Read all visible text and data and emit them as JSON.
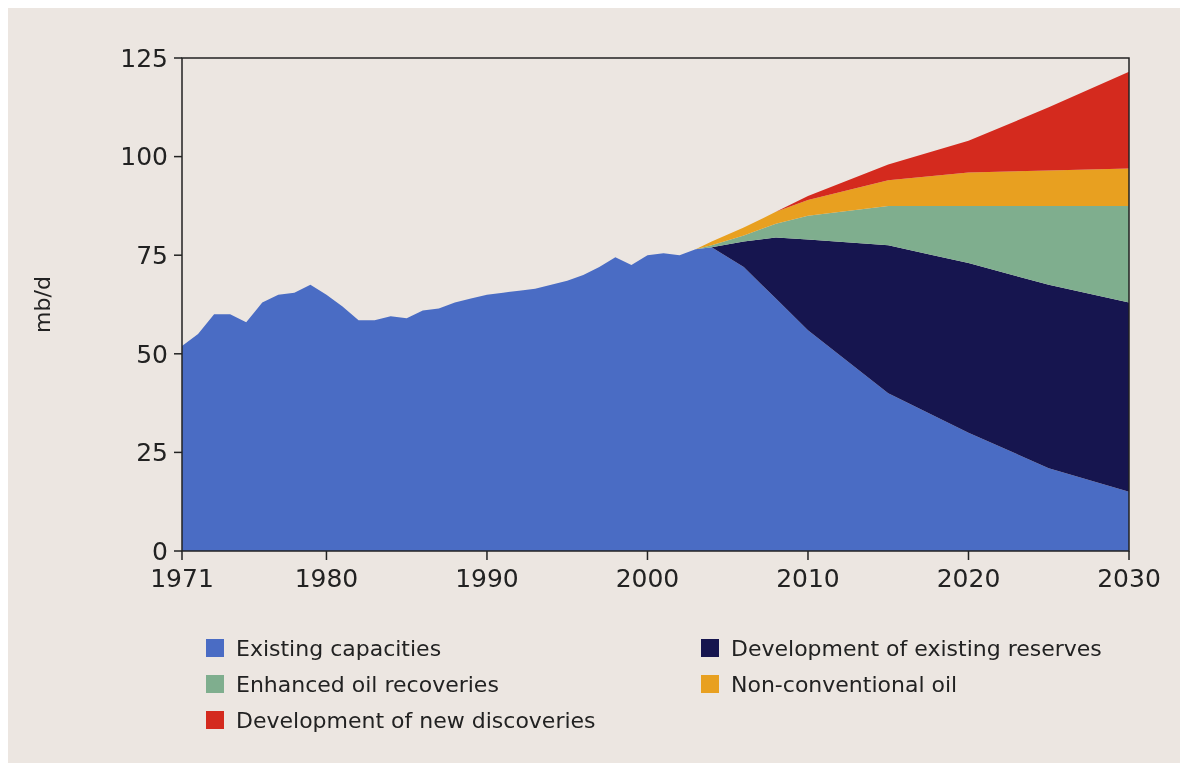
{
  "chart_data": {
    "type": "area",
    "stacked": true,
    "ylabel": "mb/d",
    "x": [
      1971,
      1972,
      1973,
      1974,
      1975,
      1976,
      1977,
      1978,
      1979,
      1980,
      1981,
      1982,
      1983,
      1984,
      1985,
      1986,
      1987,
      1988,
      1989,
      1990,
      1991,
      1992,
      1993,
      1994,
      1995,
      1996,
      1997,
      1998,
      1999,
      2000,
      2001,
      2002,
      2003,
      2004,
      2006,
      2008,
      2010,
      2015,
      2020,
      2025,
      2030
    ],
    "series": [
      {
        "name": "Existing capacities",
        "color": "#4a6cc4",
        "values": [
          52,
          55,
          60,
          60,
          58,
          63,
          65,
          65.5,
          67.5,
          65,
          62,
          58.5,
          58.5,
          59.5,
          59,
          61,
          61.5,
          63,
          64,
          65,
          65.5,
          66,
          66.5,
          67.5,
          68.5,
          70,
          72,
          74.5,
          72.5,
          75,
          75.5,
          75,
          76.5,
          77,
          72,
          64,
          56,
          40,
          30,
          21,
          15
        ]
      },
      {
        "name": "Development of existing reserves",
        "color": "#16154f",
        "values": [
          0,
          0,
          0,
          0,
          0,
          0,
          0,
          0,
          0,
          0,
          0,
          0,
          0,
          0,
          0,
          0,
          0,
          0,
          0,
          0,
          0,
          0,
          0,
          0,
          0,
          0,
          0,
          0,
          0,
          0,
          0,
          0,
          0,
          0,
          6.5,
          15.5,
          23,
          37.5,
          43,
          46.5,
          48
        ]
      },
      {
        "name": "Enhanced oil recoveries",
        "color": "#7fae8e",
        "values": [
          0,
          0,
          0,
          0,
          0,
          0,
          0,
          0,
          0,
          0,
          0,
          0,
          0,
          0,
          0,
          0,
          0,
          0,
          0,
          0,
          0,
          0,
          0,
          0,
          0,
          0,
          0,
          0,
          0,
          0,
          0,
          0,
          0,
          0.5,
          1.5,
          3.5,
          6,
          10,
          14.5,
          20,
          24.5
        ]
      },
      {
        "name": "Non-conventional oil",
        "color": "#e8a020",
        "values": [
          0,
          0,
          0,
          0,
          0,
          0,
          0,
          0,
          0,
          0,
          0,
          0,
          0,
          0,
          0,
          0,
          0,
          0,
          0,
          0,
          0,
          0,
          0,
          0,
          0,
          0,
          0,
          0,
          0,
          0,
          0,
          0,
          0,
          1,
          2,
          3,
          4,
          6.5,
          8.5,
          9,
          9.5
        ]
      },
      {
        "name": "Development of new discoveries",
        "color": "#d42a1e",
        "values": [
          0,
          0,
          0,
          0,
          0,
          0,
          0,
          0,
          0,
          0,
          0,
          0,
          0,
          0,
          0,
          0,
          0,
          0,
          0,
          0,
          0,
          0,
          0,
          0,
          0,
          0,
          0,
          0,
          0,
          0,
          0,
          0,
          0,
          0,
          0,
          0,
          1,
          4,
          8,
          16,
          24.5
        ]
      }
    ],
    "xlim": [
      1971,
      2030
    ],
    "xticks": [
      1971,
      1980,
      1990,
      2000,
      2010,
      2020,
      2030
    ],
    "ylim": [
      0,
      125
    ],
    "yticks": [
      0,
      25,
      50,
      75,
      100,
      125
    ],
    "legend": "bottom",
    "grid": false
  }
}
